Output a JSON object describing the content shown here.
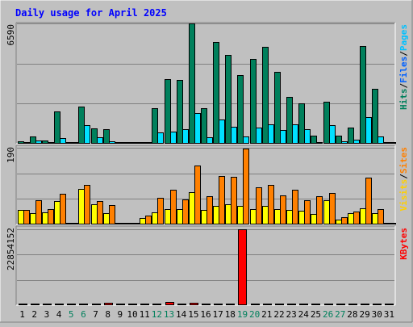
{
  "title": "Daily usage for April 2025",
  "colors": {
    "background": "#c0c0c0",
    "title": "#0000ff",
    "hits": "#00805c",
    "files": "#00e0ff",
    "pages": "#00e0ff",
    "visits": "#ffff00",
    "sites": "#ff8000",
    "kbytes": "#ff0000",
    "weekend_label": "#00805c"
  },
  "chart_data": [
    {
      "type": "bar",
      "name": "hits-files-pages",
      "max_label": "6590",
      "ymax": 6590,
      "right_label": [
        {
          "text": "Hits",
          "color": "#00805c"
        },
        {
          "text": "/",
          "color": "#000000"
        },
        {
          "text": "Files",
          "color": "#0060ff"
        },
        {
          "text": "/",
          "color": "#000000"
        },
        {
          "text": "Pages",
          "color": "#00c0ff"
        }
      ],
      "categories": [
        "1",
        "2",
        "3",
        "4",
        "5",
        "6",
        "7",
        "8",
        "9",
        "10",
        "11",
        "12",
        "13",
        "14",
        "15",
        "16",
        "17",
        "18",
        "19",
        "20",
        "21",
        "22",
        "23",
        "24",
        "25",
        "26",
        "27",
        "28",
        "29",
        "30",
        "31"
      ],
      "series": [
        {
          "key": "hits",
          "values": [
            120,
            380,
            180,
            1760,
            0,
            2050,
            830,
            780,
            0,
            0,
            60,
            1950,
            3560,
            3500,
            6590,
            1950,
            5580,
            4860,
            3760,
            4640,
            5310,
            3930,
            2560,
            2200,
            450,
            2300,
            450,
            880,
            5350,
            3010,
            0
          ]
        },
        {
          "key": "files",
          "values": [
            80,
            160,
            100,
            300,
            0,
            1000,
            370,
            150,
            0,
            0,
            30,
            600,
            650,
            800,
            1680,
            370,
            1340,
            930,
            380,
            870,
            1070,
            730,
            1050,
            780,
            100,
            1020,
            120,
            220,
            1480,
            400,
            0
          ]
        }
      ]
    },
    {
      "type": "bar",
      "name": "visits-sites",
      "max_label": "190",
      "ymax": 190,
      "right_label": [
        {
          "text": "Visits",
          "color": "#ffd000"
        },
        {
          "text": "/",
          "color": "#000000"
        },
        {
          "text": "Sites",
          "color": "#ff8000"
        }
      ],
      "categories": [
        "1",
        "2",
        "3",
        "4",
        "5",
        "6",
        "7",
        "8",
        "9",
        "10",
        "11",
        "12",
        "13",
        "14",
        "15",
        "16",
        "17",
        "18",
        "19",
        "20",
        "21",
        "22",
        "23",
        "24",
        "25",
        "26",
        "27",
        "28",
        "29",
        "30",
        "31"
      ],
      "series": [
        {
          "key": "visits",
          "values": [
            35,
            27,
            30,
            57,
            0,
            87,
            50,
            27,
            0,
            0,
            15,
            30,
            37,
            37,
            80,
            35,
            45,
            50,
            45,
            37,
            45,
            37,
            35,
            33,
            25,
            60,
            12,
            27,
            40,
            27,
            0
          ]
        },
        {
          "key": "sites",
          "values": [
            35,
            60,
            37,
            75,
            0,
            97,
            57,
            47,
            0,
            0,
            22,
            65,
            85,
            62,
            145,
            70,
            120,
            117,
            187,
            92,
            97,
            72,
            85,
            60,
            70,
            77,
            17,
            32,
            115,
            37,
            0
          ]
        }
      ]
    },
    {
      "type": "bar",
      "name": "kbytes",
      "max_label": "22854152",
      "ymax": 22854152,
      "right_label": [
        {
          "text": "KBytes",
          "color": "#ff0000"
        }
      ],
      "categories": [
        "1",
        "2",
        "3",
        "4",
        "5",
        "6",
        "7",
        "8",
        "9",
        "10",
        "11",
        "12",
        "13",
        "14",
        "15",
        "16",
        "17",
        "18",
        "19",
        "20",
        "21",
        "22",
        "23",
        "24",
        "25",
        "26",
        "27",
        "28",
        "29",
        "30",
        "31"
      ],
      "series": [
        {
          "key": "kbytes",
          "values": [
            320000,
            120000,
            100000,
            120000,
            0,
            120000,
            120000,
            640000,
            0,
            0,
            100000,
            120000,
            970000,
            150000,
            650000,
            430000,
            180000,
            100000,
            22854152,
            120000,
            120000,
            120000,
            120000,
            350000,
            120000,
            120000,
            120000,
            120000,
            120000,
            120000,
            0
          ]
        }
      ]
    }
  ],
  "weekend_days": [
    "5",
    "6",
    "12",
    "13",
    "19",
    "20",
    "26",
    "27"
  ]
}
